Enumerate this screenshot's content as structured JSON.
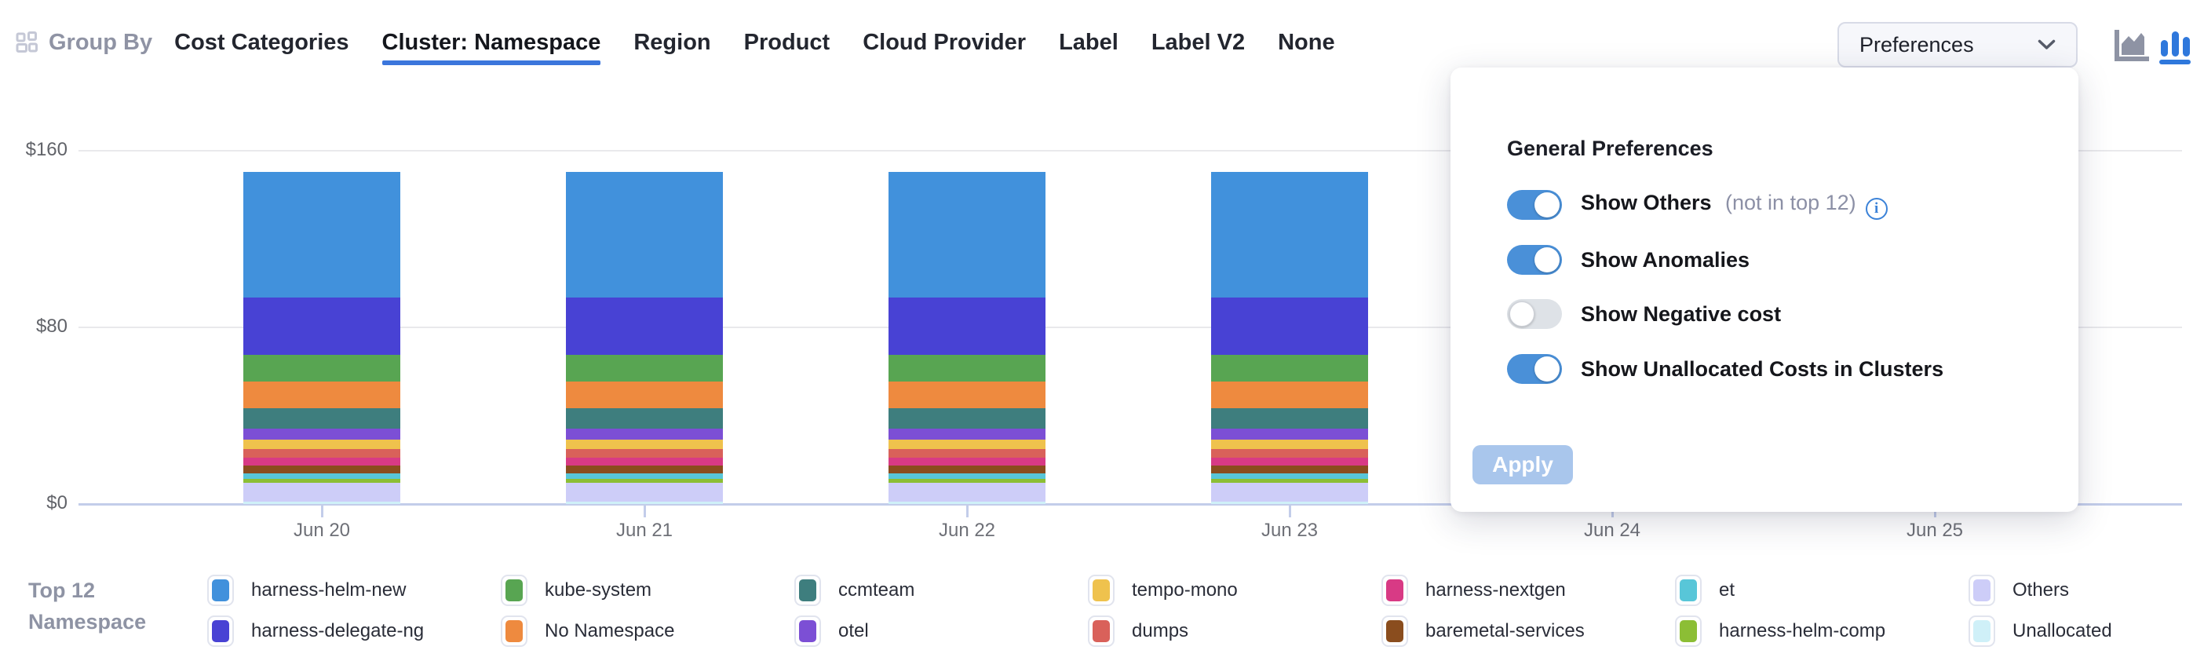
{
  "toolbar": {
    "group_by_label": "Group By",
    "tabs": [
      {
        "label": "Cost Categories",
        "active": false
      },
      {
        "label": "Cluster: Namespace",
        "active": true
      },
      {
        "label": "Region",
        "active": false
      },
      {
        "label": "Product",
        "active": false
      },
      {
        "label": "Cloud Provider",
        "active": false
      },
      {
        "label": "Label",
        "active": false
      },
      {
        "label": "Label V2",
        "active": false
      },
      {
        "label": "None",
        "active": false
      }
    ],
    "preferences_button_label": "Preferences",
    "chart_type_icons": [
      {
        "name": "area-chart-icon",
        "color": "#8E93A4",
        "active": false
      },
      {
        "name": "bar-chart-icon",
        "color": "#2F78DC",
        "active": true
      }
    ]
  },
  "preferences_panel": {
    "title": "General Preferences",
    "toggles": [
      {
        "label": "Show Others",
        "suffix": "(not in top 12)",
        "info_icon": true,
        "on": true
      },
      {
        "label": "Show Anomalies",
        "suffix": "",
        "info_icon": false,
        "on": true
      },
      {
        "label": "Show Negative cost",
        "suffix": "",
        "info_icon": false,
        "on": false
      },
      {
        "label": "Show Unallocated Costs in Clusters",
        "suffix": "",
        "info_icon": false,
        "on": true
      }
    ],
    "apply_label": "Apply"
  },
  "legend": {
    "title_line1": "Top 12",
    "title_line2": "Namespace"
  },
  "chart_data": {
    "type": "bar",
    "stacked": true,
    "x": [
      "Jun 20",
      "Jun 21",
      "Jun 22",
      "Jun 23",
      "Jun 24",
      "Jun 25"
    ],
    "ylim": [
      0,
      160
    ],
    "y_ticks": [
      {
        "value": 0,
        "label": "$0"
      },
      {
        "value": 80,
        "label": "$80"
      },
      {
        "value": 160,
        "label": "$160"
      }
    ],
    "grid": true,
    "legend_position": "bottom",
    "note": "Values in $; bars for Jun 24 and Jun 25 are obscured by the open Preferences popup. Series listed top-of-stack first.",
    "series": [
      {
        "name": "harness-helm-new",
        "color": "#4191DC",
        "values": [
          57,
          57,
          57,
          57,
          null,
          null
        ]
      },
      {
        "name": "harness-delegate-ng",
        "color": "#4842D4",
        "values": [
          26,
          26,
          26,
          26,
          null,
          null
        ]
      },
      {
        "name": "kube-system",
        "color": "#58A552",
        "values": [
          12,
          12,
          12,
          12,
          null,
          null
        ]
      },
      {
        "name": "No Namespace",
        "color": "#EE8A3F",
        "values": [
          12,
          12,
          12,
          12,
          null,
          null
        ]
      },
      {
        "name": "ccmteam",
        "color": "#3E7E7E",
        "values": [
          9.5,
          9.5,
          9.5,
          9.5,
          null,
          null
        ]
      },
      {
        "name": "otel",
        "color": "#7C4FD5",
        "values": [
          5,
          5,
          5,
          5,
          null,
          null
        ]
      },
      {
        "name": "tempo-mono",
        "color": "#EFC24D",
        "values": [
          4,
          4,
          4,
          4,
          null,
          null
        ]
      },
      {
        "name": "dumps",
        "color": "#D9615A",
        "values": [
          4,
          4,
          4,
          4,
          null,
          null
        ]
      },
      {
        "name": "harness-nextgen",
        "color": "#D83A85",
        "values": [
          3.5,
          3.5,
          3.5,
          3.5,
          null,
          null
        ]
      },
      {
        "name": "baremetal-services",
        "color": "#8A4D1E",
        "values": [
          3.5,
          3.5,
          3.5,
          3.5,
          null,
          null
        ]
      },
      {
        "name": "et",
        "color": "#58C6D8",
        "values": [
          2.5,
          2.5,
          2.5,
          2.5,
          null,
          null
        ]
      },
      {
        "name": "harness-helm-comp",
        "color": "#8CBE35",
        "values": [
          2,
          2,
          2,
          2,
          null,
          null
        ]
      },
      {
        "name": "Others",
        "color": "#CDCDF8",
        "values": [
          8.5,
          8.5,
          8.5,
          8.5,
          null,
          null
        ]
      },
      {
        "name": "Unallocated",
        "color": "#CFF0F8",
        "values": [
          1,
          1,
          1,
          1,
          null,
          null
        ]
      }
    ]
  }
}
